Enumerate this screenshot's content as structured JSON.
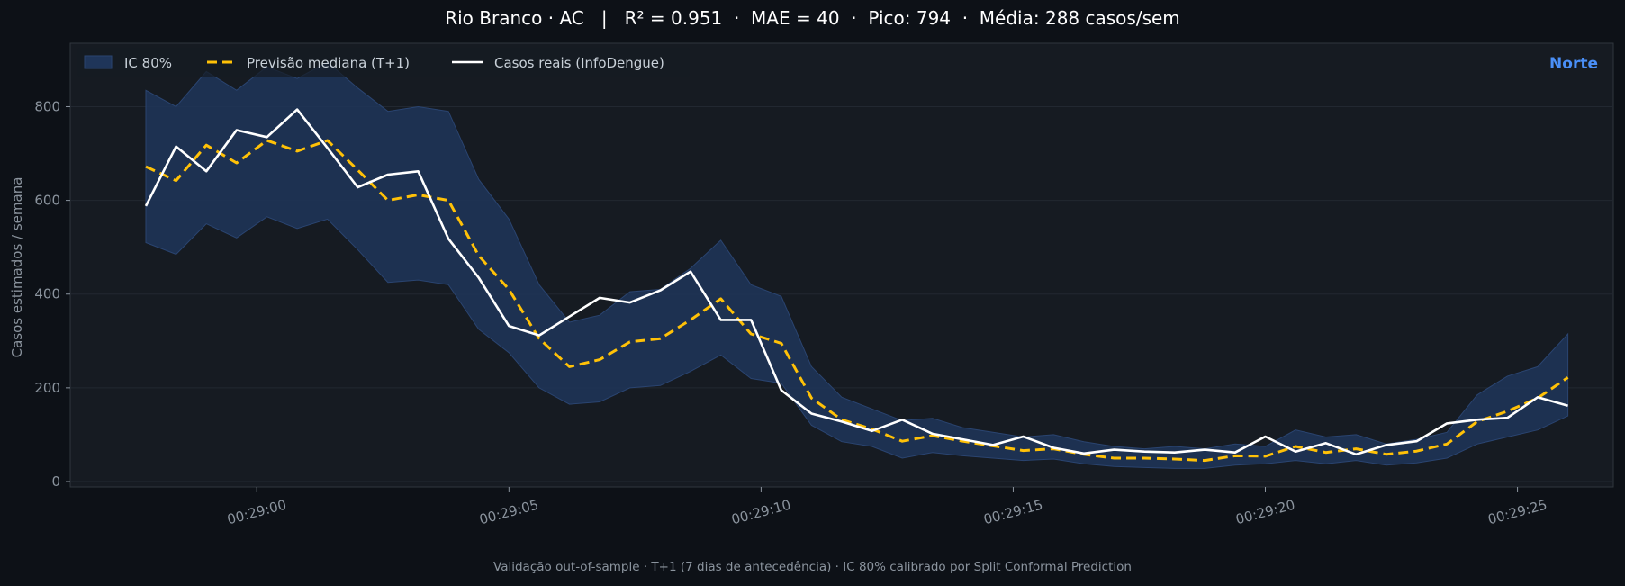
{
  "header": {
    "title": "Rio Branco · AC   |   R² = 0.951  ·  MAE = 40  ·  Pico: 794  ·  Média: 288 casos/sem"
  },
  "footer": {
    "note": "Validação out-of-sample · T+1 (7 dias de antecedência) · IC 80% calibrado por Split Conformal Prediction"
  },
  "region_label": "Norte",
  "colors": {
    "background": "#0d1117",
    "plot_bg": "#161b22",
    "band": "#1f3559",
    "forecast": "#ffc107",
    "actual": "#ffffff",
    "region": "#4a8ff7"
  },
  "chart_data": {
    "type": "line",
    "ylabel": "Casos estimados / semana",
    "xlabel": "",
    "ylim": [
      0,
      920
    ],
    "yticks": [
      0,
      200,
      400,
      600,
      800
    ],
    "xlim": [
      -0.6,
      60.6
    ],
    "xticks": [
      {
        "x": 6.8,
        "label": "00:29:00"
      },
      {
        "x": 16.8,
        "label": "00:29:05"
      },
      {
        "x": 26.8,
        "label": "00:29:10"
      },
      {
        "x": 36.8,
        "label": "00:29:15"
      },
      {
        "x": 46.8,
        "label": "00:29:20"
      },
      {
        "x": 56.8,
        "label": "00:29:25"
      }
    ],
    "grid": true,
    "legend_position": "top-left",
    "legend": [
      "IC 80%",
      "Previsão mediana (T+1)",
      "Casos reais (InfoDengue)"
    ],
    "x": [
      2.4,
      3.6,
      4.8,
      6.0,
      7.2,
      8.4,
      9.6,
      10.8,
      12.0,
      13.2,
      14.4,
      15.6,
      16.8,
      18.0,
      19.2,
      20.4,
      21.6,
      22.8,
      24.0,
      25.2,
      26.4,
      27.6,
      28.8,
      30.0,
      31.2,
      32.4,
      33.6,
      34.8,
      36.0,
      37.2,
      38.4,
      39.6,
      40.8,
      42.0,
      43.2,
      44.4,
      45.6,
      46.8,
      48.0,
      49.2,
      50.4,
      51.6,
      52.8,
      54.0,
      55.2,
      56.4,
      57.6,
      58.8
    ],
    "series": [
      {
        "name": "IC 80%",
        "kind": "band",
        "upper": [
          835,
          800,
          875,
          835,
          885,
          860,
          895,
          840,
          790,
          800,
          790,
          645,
          560,
          420,
          340,
          355,
          405,
          410,
          455,
          515,
          420,
          395,
          245,
          180,
          155,
          130,
          135,
          115,
          105,
          95,
          100,
          85,
          75,
          70,
          75,
          70,
          80,
          75,
          110,
          95,
          100,
          80,
          90,
          105,
          185,
          225,
          245,
          315
        ],
        "lower": [
          510,
          485,
          550,
          520,
          565,
          540,
          560,
          495,
          425,
          430,
          420,
          325,
          275,
          200,
          165,
          170,
          200,
          205,
          235,
          270,
          220,
          210,
          120,
          85,
          75,
          50,
          62,
          55,
          50,
          45,
          48,
          38,
          32,
          30,
          28,
          28,
          35,
          38,
          45,
          38,
          45,
          35,
          40,
          50,
          80,
          95,
          110,
          140
        ]
      },
      {
        "name": "Previsão mediana (T+1)",
        "kind": "dashed",
        "values": [
          672,
          642,
          718,
          680,
          728,
          705,
          728,
          665,
          600,
          612,
          600,
          482,
          410,
          305,
          245,
          260,
          298,
          305,
          345,
          390,
          315,
          295,
          178,
          132,
          112,
          86,
          98,
          86,
          76,
          66,
          70,
          58,
          50,
          50,
          48,
          45,
          55,
          54,
          75,
          62,
          70,
          58,
          65,
          80,
          128,
          150,
          178,
          222
        ]
      },
      {
        "name": "Casos reais (InfoDengue)",
        "kind": "solid",
        "values": [
          588,
          715,
          662,
          750,
          735,
          794,
          712,
          628,
          655,
          662,
          518,
          435,
          332,
          312,
          352,
          392,
          382,
          408,
          448,
          345,
          345,
          195,
          145,
          128,
          108,
          132,
          102,
          90,
          78,
          96,
          72,
          60,
          68,
          64,
          62,
          68,
          62,
          96,
          64,
          82,
          58,
          78,
          86,
          124,
          132,
          136,
          180,
          162
        ]
      }
    ]
  }
}
